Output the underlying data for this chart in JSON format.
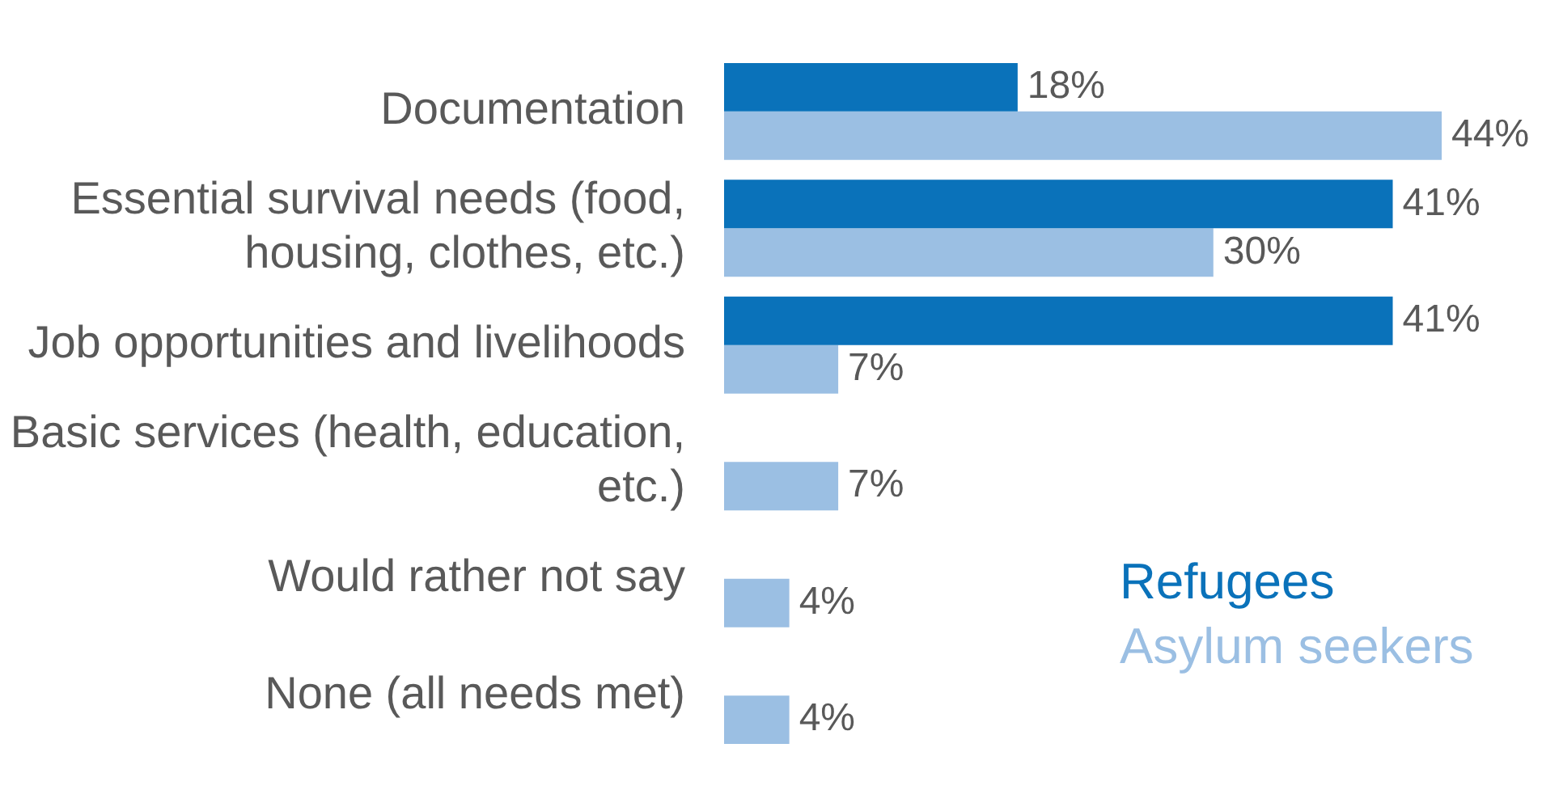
{
  "chart_data": {
    "type": "bar",
    "orientation": "horizontal",
    "categories": [
      "Documentation",
      "Essential survival needs (food, housing, clothes, etc.)",
      "Job opportunities and livelihoods",
      "Basic services (health, education, etc.)",
      "Would rather not say",
      "None (all needs met)"
    ],
    "series": [
      {
        "name": "Refugees",
        "color": "#0a72ba",
        "values": [
          18,
          41,
          41,
          null,
          null,
          null
        ],
        "value_labels": [
          "18%",
          "41%",
          "41%",
          null,
          null,
          null
        ]
      },
      {
        "name": "Asylum seekers",
        "color": "#9bbfe3",
        "values": [
          44,
          30,
          7,
          7,
          4,
          4
        ],
        "value_labels": [
          "44%",
          "30%",
          "7%",
          "7%",
          "4%",
          "4%"
        ]
      }
    ],
    "legend": "bottom right",
    "grid": false
  }
}
